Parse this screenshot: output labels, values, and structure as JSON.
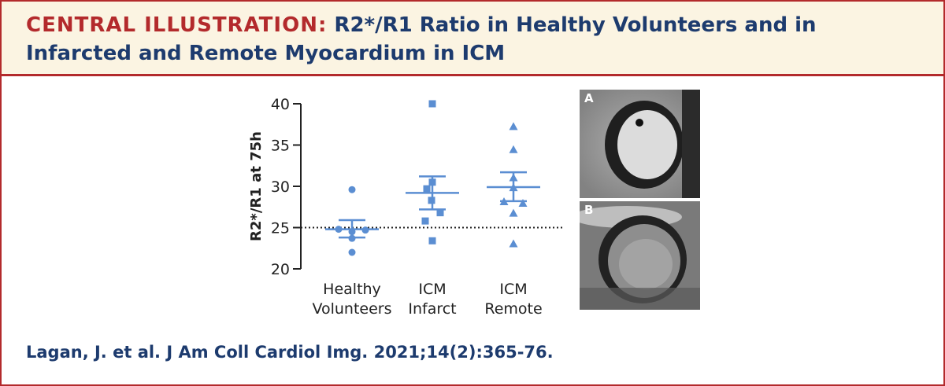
{
  "header": {
    "lead": "CENTRAL ILLUSTRATION:",
    "title": "R2*/R1 Ratio in Healthy Volunteers and in Infarcted and Remote Myocardium in ICM"
  },
  "citation": "Lagan, J. et al. J Am Coll Cardiol Img. 2021;14(2):365-76.",
  "panels": [
    {
      "label": "A"
    },
    {
      "label": "B"
    }
  ],
  "colors": {
    "accent": "#b32a2c",
    "title": "#1d3b6e",
    "series": "#5b8ed2",
    "header_bg": "#fbf4e2"
  },
  "chart_data": {
    "type": "scatter",
    "ylabel": "R2*/R1 at 75h",
    "ylim": [
      20,
      40
    ],
    "yticks": [
      20,
      25,
      30,
      35,
      40
    ],
    "reference_line": 25,
    "grid": false,
    "groups": [
      {
        "label_lines": [
          "Healthy",
          "Volunteers"
        ],
        "marker": "circle",
        "points": [
          29.6,
          24.8,
          24.7,
          24.5,
          23.7,
          22.0
        ],
        "mean": 24.8,
        "error": [
          23.8,
          25.9
        ]
      },
      {
        "label_lines": [
          "ICM",
          "Infarct"
        ],
        "marker": "square",
        "points": [
          40.0,
          30.5,
          29.7,
          28.3,
          26.8,
          25.8,
          23.4
        ],
        "mean": 29.2,
        "error": [
          27.2,
          31.2
        ]
      },
      {
        "label_lines": [
          "ICM",
          "Remote"
        ],
        "marker": "triangle",
        "points": [
          37.2,
          34.4,
          31.0,
          29.8,
          28.1,
          27.9,
          26.7,
          23.0
        ],
        "mean": 29.9,
        "error": [
          28.2,
          31.7
        ]
      }
    ]
  }
}
